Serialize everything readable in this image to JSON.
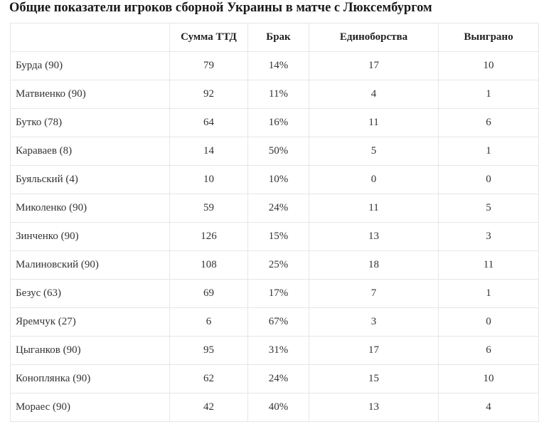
{
  "title": "Общие показатели игроков сборной Украины в матче с Люксембургом",
  "table": {
    "columns": [
      "",
      "Сумма ТТД",
      "Брак",
      "Единоборства",
      "Выиграно"
    ],
    "rows": [
      [
        "Бурда (90)",
        "79",
        "14%",
        "17",
        "10"
      ],
      [
        "Матвиенко (90)",
        "92",
        "11%",
        "4",
        "1"
      ],
      [
        "Бутко (78)",
        "64",
        "16%",
        "11",
        "6"
      ],
      [
        "Караваев (8)",
        "14",
        "50%",
        "5",
        "1"
      ],
      [
        "Буяльский (4)",
        "10",
        "10%",
        "0",
        "0"
      ],
      [
        "Миколенко (90)",
        "59",
        "24%",
        "11",
        "5"
      ],
      [
        "Зинченко (90)",
        "126",
        "15%",
        "13",
        "3"
      ],
      [
        "Малиновский (90)",
        "108",
        "25%",
        "18",
        "11"
      ],
      [
        "Безус (63)",
        "69",
        "17%",
        "7",
        "1"
      ],
      [
        "Яремчук (27)",
        "6",
        "67%",
        "3",
        "0"
      ],
      [
        "Цыганков (90)",
        "95",
        "31%",
        "17",
        "6"
      ],
      [
        "Коноплянка (90)",
        "62",
        "24%",
        "15",
        "10"
      ],
      [
        "Мораес (90)",
        "42",
        "40%",
        "13",
        "4"
      ]
    ]
  }
}
